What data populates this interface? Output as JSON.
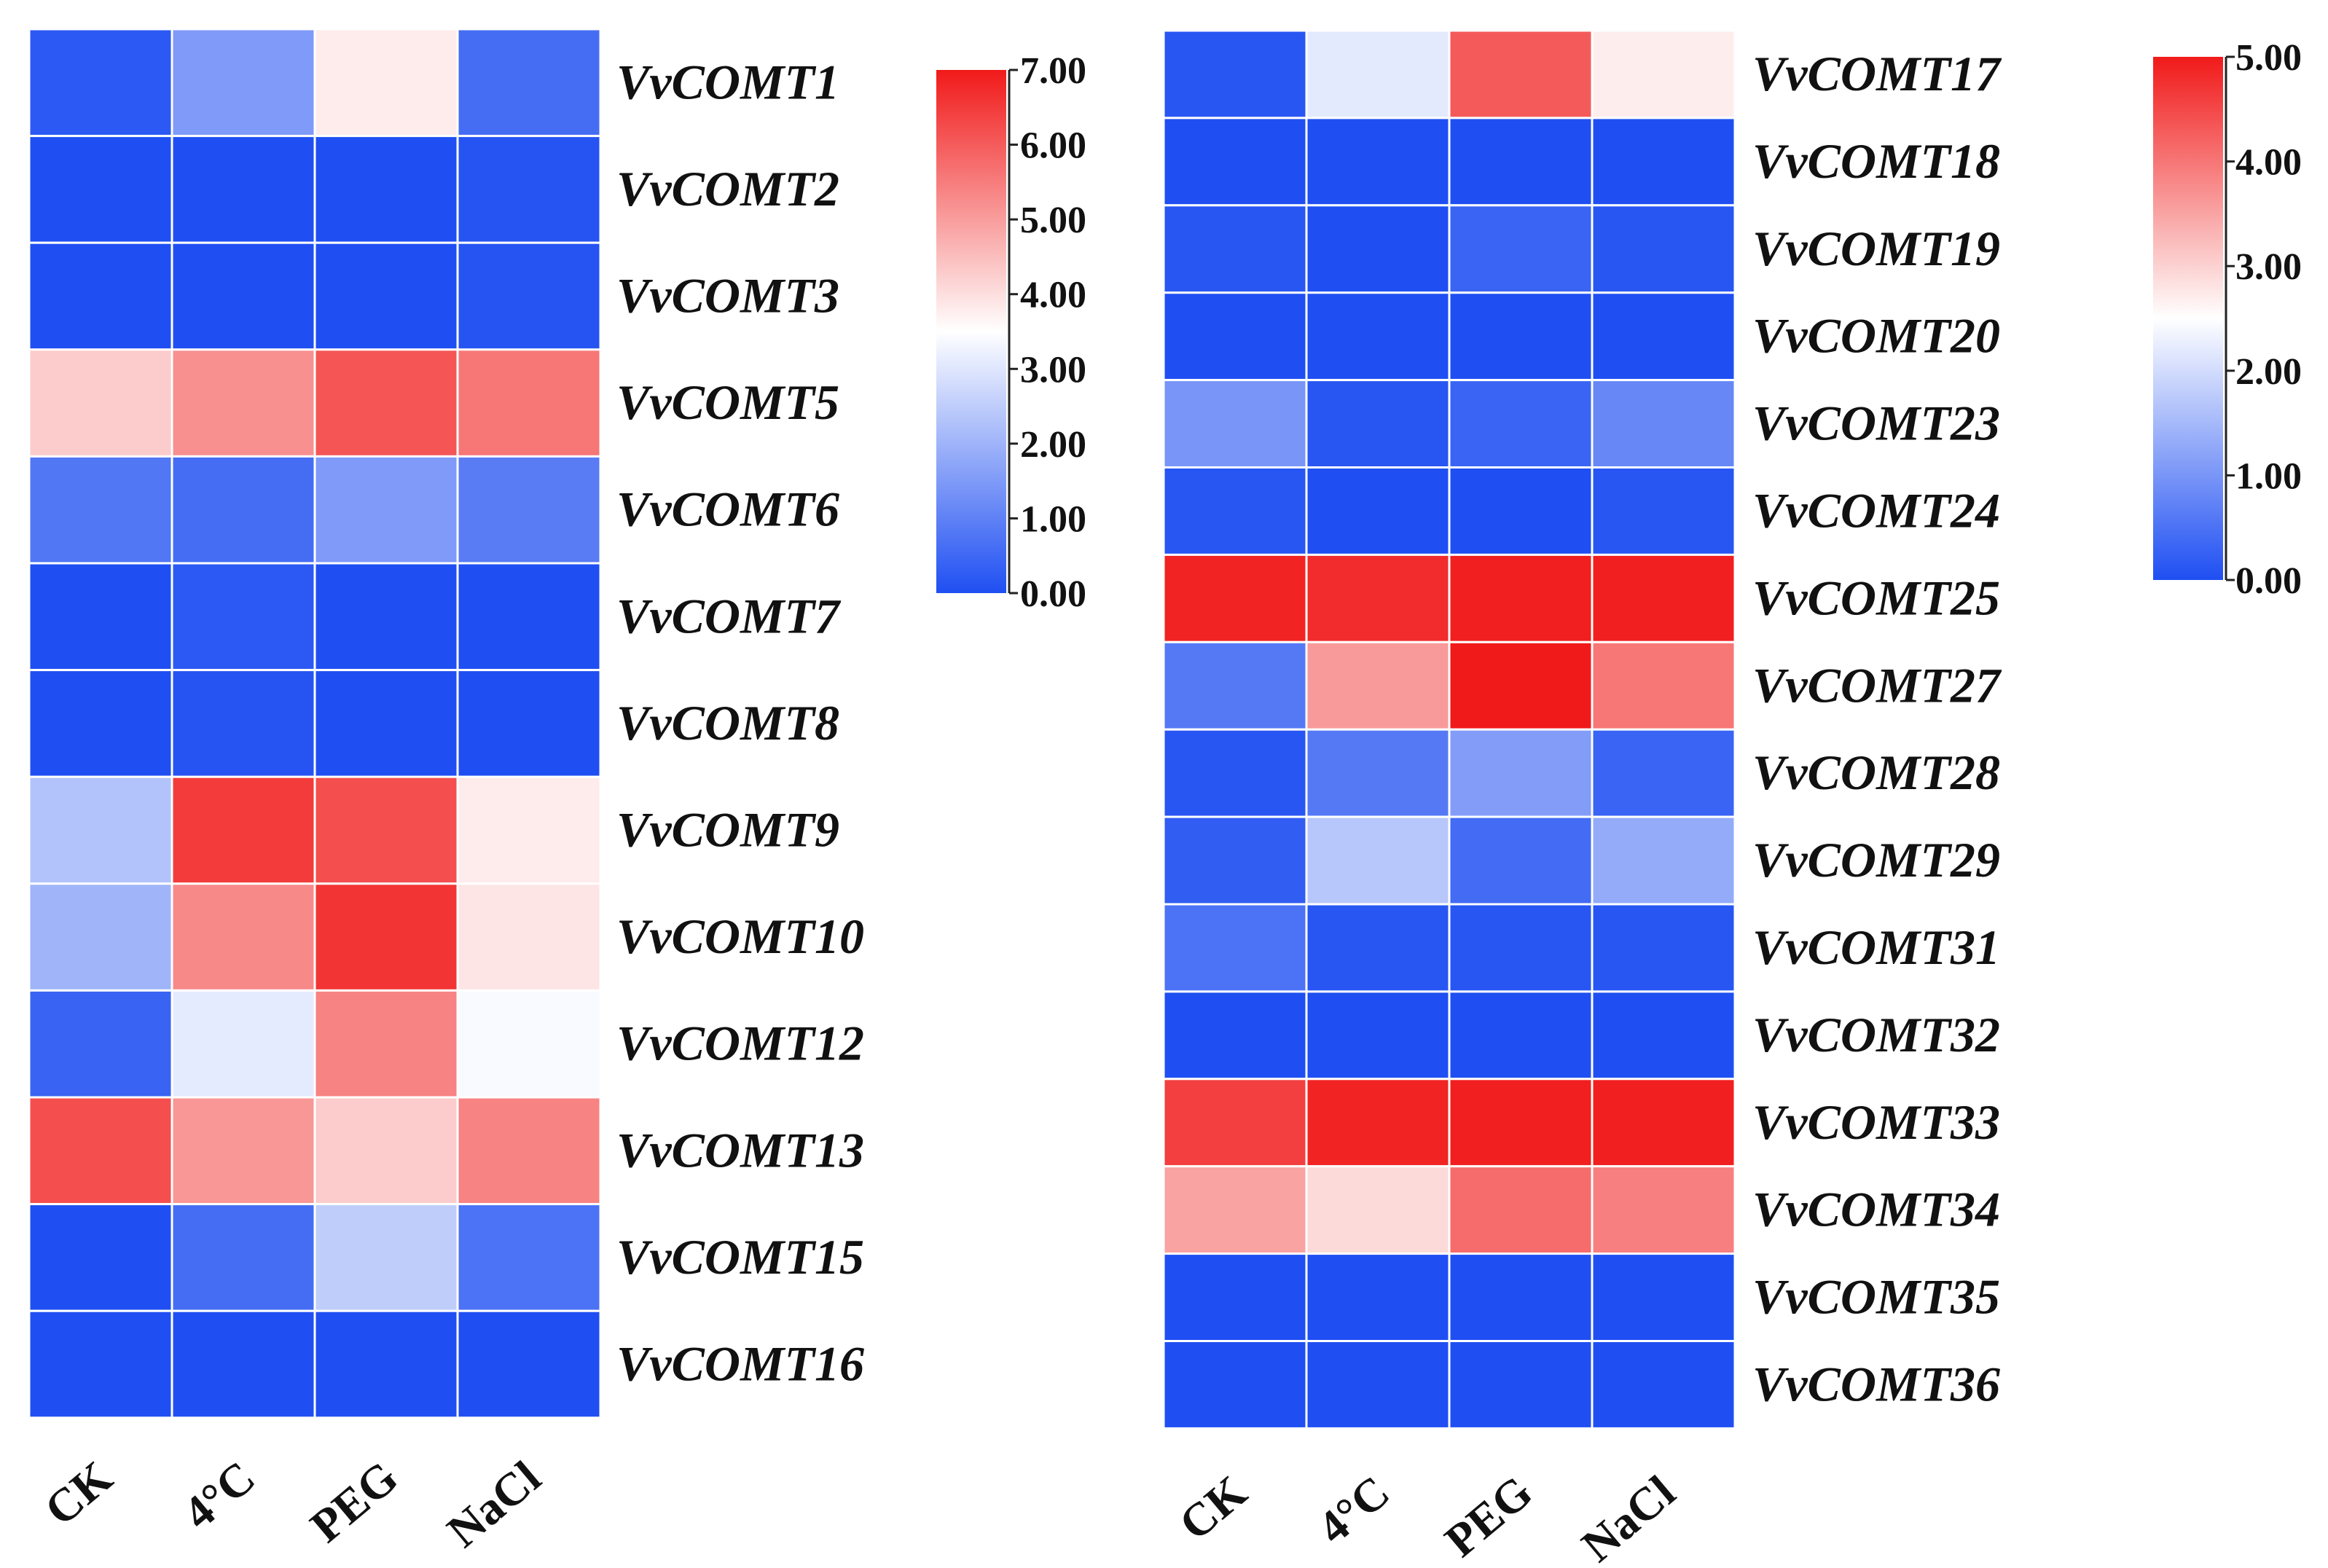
{
  "chart_data": [
    {
      "type": "heatmap",
      "title": "",
      "categories": [
        "CK",
        "4°C",
        "PEG",
        "NaCl"
      ],
      "rows": [
        "VvCOMT1",
        "VvCOMT2",
        "VvCOMT3",
        "VvCOMT5",
        "VvCOMT6",
        "VvCOMT7",
        "VvCOMT8",
        "VvCOMT9",
        "VvCOMT10",
        "VvCOMT12",
        "VvCOMT13",
        "VvCOMT15",
        "VvCOMT16"
      ],
      "values": [
        [
          0.2,
          1.5,
          3.8,
          0.6
        ],
        [
          0.0,
          0.0,
          0.0,
          0.1
        ],
        [
          0.0,
          0.0,
          0.0,
          0.1
        ],
        [
          4.3,
          5.2,
          6.1,
          5.6
        ],
        [
          0.8,
          0.6,
          1.5,
          0.9
        ],
        [
          0.0,
          0.2,
          0.0,
          0.0
        ],
        [
          0.0,
          0.1,
          0.0,
          0.0
        ],
        [
          2.3,
          6.5,
          6.2,
          3.8
        ],
        [
          2.0,
          5.3,
          6.6,
          3.9
        ],
        [
          0.4,
          3.1,
          5.4,
          3.4
        ],
        [
          6.2,
          5.1,
          4.3,
          5.4
        ],
        [
          0.0,
          0.6,
          2.5,
          0.7
        ],
        [
          0.0,
          0.0,
          0.0,
          0.0
        ]
      ],
      "colorbar": {
        "min": 0,
        "max": 7,
        "ticks": [
          "7.00",
          "6.00",
          "5.00",
          "4.00",
          "3.00",
          "2.00",
          "1.00",
          "0.00"
        ],
        "tick_values": [
          7,
          6,
          5,
          4,
          3,
          2,
          1,
          0
        ]
      },
      "colors": {
        "low": "#1f4ff2",
        "mid": "#ffffff",
        "high": "#f11a1a"
      }
    },
    {
      "type": "heatmap",
      "title": "",
      "categories": [
        "CK",
        "4°C",
        "PEG",
        "NaCl"
      ],
      "rows": [
        "VvCOMT17",
        "VvCOMT18",
        "VvCOMT19",
        "VvCOMT20",
        "VvCOMT23",
        "VvCOMT24",
        "VvCOMT25",
        "VvCOMT27",
        "VvCOMT28",
        "VvCOMT29",
        "VvCOMT31",
        "VvCOMT32",
        "VvCOMT33",
        "VvCOMT34",
        "VvCOMT35",
        "VvCOMT36"
      ],
      "values": [
        [
          0.1,
          2.2,
          4.3,
          2.7
        ],
        [
          0.0,
          0.0,
          0.0,
          0.0
        ],
        [
          0.1,
          0.0,
          0.3,
          0.1
        ],
        [
          0.0,
          0.0,
          0.0,
          0.0
        ],
        [
          1.0,
          0.1,
          0.3,
          0.8
        ],
        [
          0.1,
          0.0,
          0.0,
          0.1
        ],
        [
          4.9,
          4.8,
          4.95,
          4.95
        ],
        [
          0.6,
          3.6,
          5.0,
          4.0
        ],
        [
          0.1,
          0.6,
          1.1,
          0.3
        ],
        [
          0.2,
          1.7,
          0.4,
          1.3
        ],
        [
          0.5,
          0.1,
          0.1,
          0.1
        ],
        [
          0.0,
          0.0,
          0.0,
          0.0
        ],
        [
          4.6,
          4.9,
          4.95,
          4.95
        ],
        [
          3.5,
          2.9,
          4.1,
          3.9
        ],
        [
          0.0,
          0.0,
          0.0,
          0.0
        ],
        [
          0.0,
          0.0,
          0.0,
          0.0
        ]
      ],
      "colorbar": {
        "min": 0,
        "max": 5,
        "ticks": [
          "5.00",
          "4.00",
          "3.00",
          "2.00",
          "1.00",
          "0.00"
        ],
        "tick_values": [
          5,
          4,
          3,
          2,
          1,
          0
        ]
      },
      "colors": {
        "low": "#1f4ff2",
        "mid": "#ffffff",
        "high": "#f11a1a"
      }
    }
  ]
}
